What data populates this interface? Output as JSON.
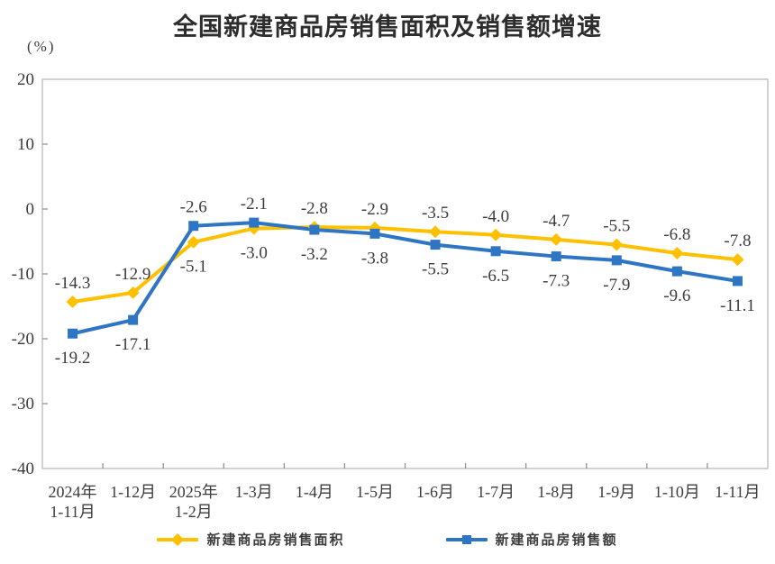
{
  "page": {
    "background": "#ffffff"
  },
  "chart_data": {
    "type": "line",
    "title": "全国新建商品房销售面积及销售额增速",
    "unit_label": "(%)",
    "categories": [
      "2024年\n1-11月",
      "1-12月",
      "2025年\n1-2月",
      "1-3月",
      "1-4月",
      "1-5月",
      "1-6月",
      "1-7月",
      "1-8月",
      "1-9月",
      "1-10月",
      "1-11月"
    ],
    "ylim": [
      -40,
      20
    ],
    "yticks": [
      20,
      10,
      0,
      -10,
      -20,
      -30,
      -40
    ],
    "grid": "off",
    "legend_position": "bottom",
    "series": [
      {
        "name": "新建商品房销售面积",
        "color": "#FFC000",
        "marker": "diamond",
        "values": [
          -14.3,
          -12.9,
          -5.1,
          -3.0,
          -2.8,
          -2.9,
          -3.5,
          -4.0,
          -4.7,
          -5.5,
          -6.8,
          -7.8
        ],
        "label_side": [
          "above",
          "above",
          "below",
          "below",
          "above",
          "above",
          "above",
          "above",
          "above",
          "above",
          "above",
          "above"
        ]
      },
      {
        "name": "新建商品房销售额",
        "color": "#2E75C4",
        "marker": "square",
        "values": [
          -19.2,
          -17.1,
          -2.6,
          -2.1,
          -3.2,
          -3.8,
          -5.5,
          -6.5,
          -7.3,
          -7.9,
          -9.6,
          -11.1
        ],
        "label_side": [
          "below",
          "below",
          "above",
          "above",
          "below",
          "below",
          "below",
          "below",
          "below",
          "below",
          "below",
          "below"
        ]
      }
    ],
    "colors": {
      "axis_border": "#c3c3c3",
      "tick": "#8c8c8c",
      "text": "#3c3c3c",
      "title_text": "#2d2d2d"
    }
  }
}
